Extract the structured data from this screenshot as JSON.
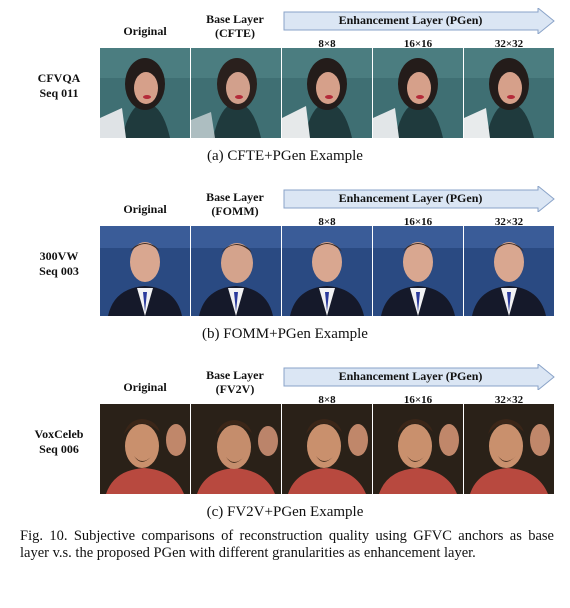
{
  "panels": [
    {
      "headers": {
        "original": "Original",
        "base_line1": "Base Layer",
        "base_line2": "(CFTE)"
      },
      "enhancement": "Enhancement Layer (PGen)",
      "granularities": [
        "8×8",
        "16×16",
        "32×32"
      ],
      "row_label": [
        "CFVQA",
        "Seq 011"
      ],
      "caption": "(a) CFTE+PGen Example"
    },
    {
      "headers": {
        "original": "Original",
        "base_line1": "Base Layer",
        "base_line2": "(FOMM)"
      },
      "enhancement": "Enhancement Layer (PGen)",
      "granularities": [
        "8×8",
        "16×16",
        "32×32"
      ],
      "row_label": [
        "300VW",
        "Seq 003"
      ],
      "caption": "(b) FOMM+PGen Example"
    },
    {
      "headers": {
        "original": "Original",
        "base_line1": "Base Layer",
        "base_line2": "(FV2V)"
      },
      "enhancement": "Enhancement Layer (PGen)",
      "granularities": [
        "8×8",
        "16×16",
        "32×32"
      ],
      "row_label": [
        "VoxCeleb",
        "Seq 006"
      ],
      "caption": "(c) FV2V+PGen Example"
    }
  ],
  "figure_caption": "Fig. 10.  Subjective comparisons of reconstruction quality using GFVC anchors as base layer v.s. the proposed PGen with different granularities as enhancement layer.",
  "colors": {
    "arrow_fill": "#dbe6f4",
    "arrow_stroke": "#8aa3c8"
  }
}
